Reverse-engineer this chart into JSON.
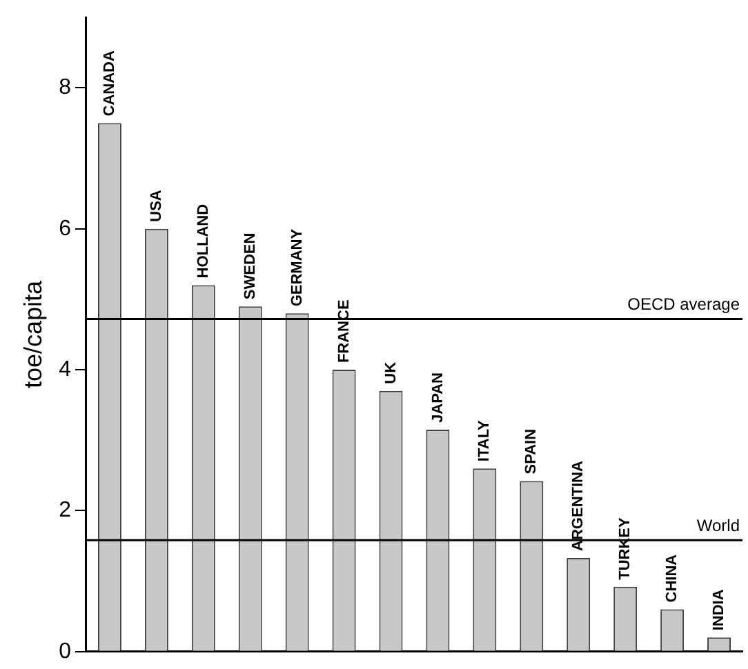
{
  "chart_data": {
    "type": "bar",
    "ylabel": "toe/capita",
    "categories": [
      "CANADA",
      "USA",
      "HOLLAND",
      "SWEDEN",
      "GERMANY",
      "FRANCE",
      "UK",
      "JAPAN",
      "ITALY",
      "SPAIN",
      "ARGENTINA",
      "TURKEY",
      "CHINA",
      "INDIA"
    ],
    "values": [
      7.5,
      6.0,
      5.2,
      4.9,
      4.8,
      4.0,
      3.7,
      3.15,
      2.6,
      2.42,
      1.33,
      0.92,
      0.6,
      0.2
    ],
    "color": "#c8c8c8",
    "ylim": [
      0,
      9
    ],
    "yticks": [
      0,
      2,
      4,
      6,
      8
    ],
    "grid": false,
    "legend": false,
    "ref_lines": [
      {
        "axis": "y",
        "value": 4.72,
        "label": "OECD average",
        "color": "#000000"
      },
      {
        "axis": "y",
        "value": 1.58,
        "label": "World",
        "color": "#000000"
      }
    ]
  }
}
